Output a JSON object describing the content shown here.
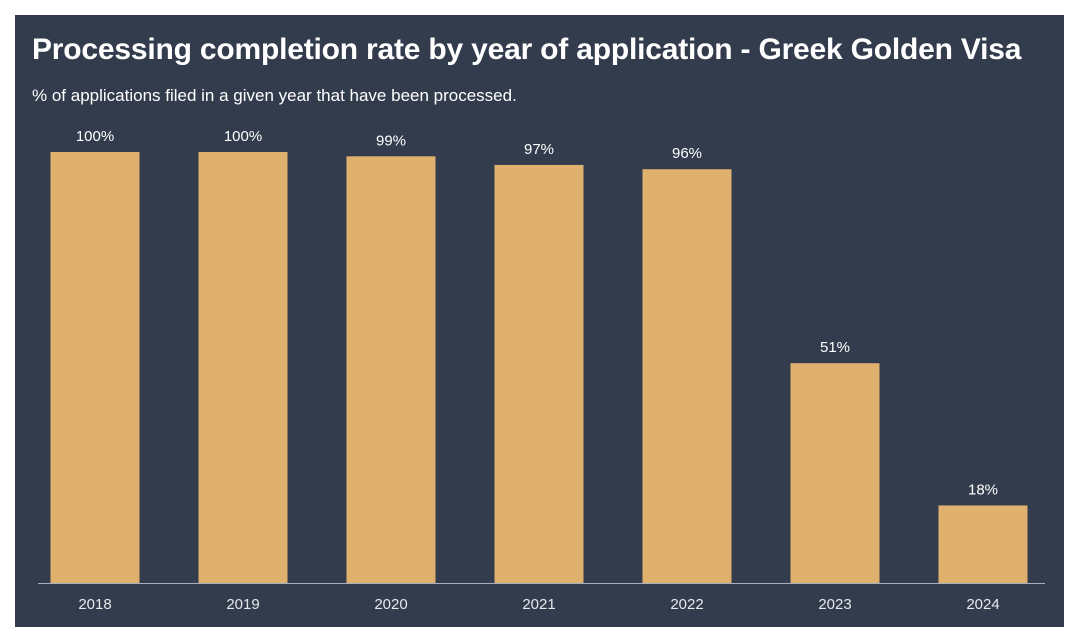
{
  "chart_data": {
    "type": "bar",
    "title": "Processing completion rate by year of application - Greek Golden Visa",
    "subtitle": "% of applications filed in a given year that have been processed.",
    "categories": [
      "2018",
      "2019",
      "2020",
      "2021",
      "2022",
      "2023",
      "2024"
    ],
    "values": [
      100,
      100,
      99,
      97,
      96,
      51,
      18
    ],
    "data_labels": [
      "100%",
      "100%",
      "99%",
      "97%",
      "96%",
      "51%",
      "18%"
    ],
    "xlabel": "",
    "ylabel": "",
    "ylim": [
      0,
      100
    ],
    "grid": false,
    "legend": "none"
  },
  "colors": {
    "background": "#323c4d",
    "bar": "#e0b06f",
    "axis": "#aab0bb",
    "text": "#ffffff"
  }
}
